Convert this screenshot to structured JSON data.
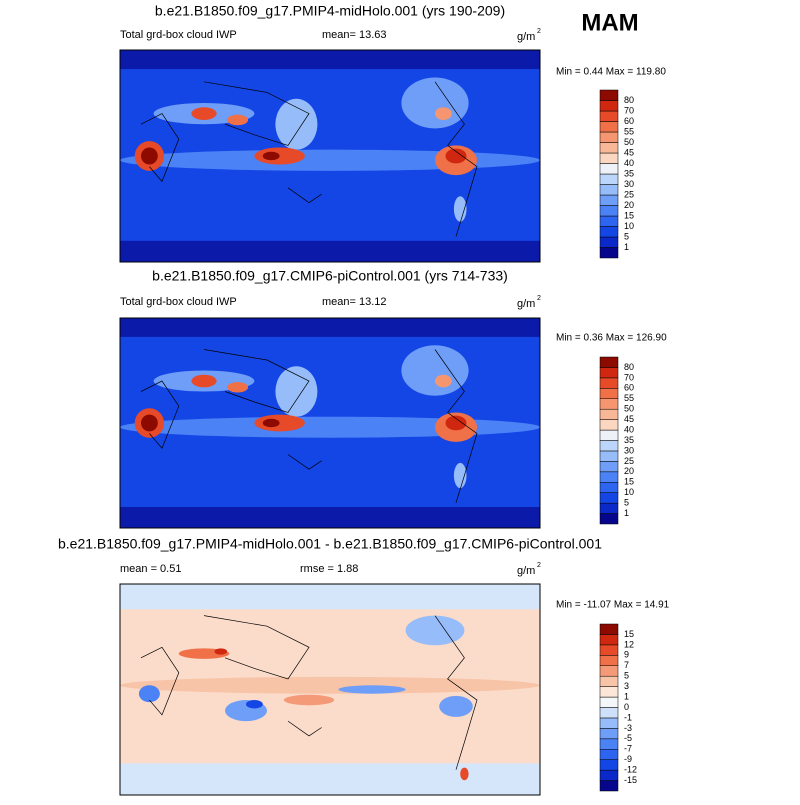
{
  "season": "MAM",
  "panels": [
    {
      "title": "b.e21.B1850.f09_g17.PMIP4-midHolo.001 (yrs 190-209)",
      "label": "Total grd-box cloud IWP",
      "mean": "mean=  13.63",
      "units": "g/m",
      "units_exp": "2",
      "minmax": "Min =  0.44 Max = 119.80",
      "colorbar": {
        "levels": [
          "1",
          "5",
          "10",
          "15",
          "20",
          "25",
          "30",
          "35",
          "40",
          "45",
          "50",
          "55",
          "60",
          "70",
          "80"
        ],
        "colors": [
          "#06068c",
          "#0b28c8",
          "#1446e6",
          "#2d64f0",
          "#4b82f5",
          "#6e9ef7",
          "#96bcf9",
          "#bcd6fb",
          "#eef2f8",
          "#fbd6c0",
          "#f8b898",
          "#f59670",
          "#f07048",
          "#e64a28",
          "#d02810",
          "#8c0a00"
        ]
      }
    },
    {
      "title": "b.e21.B1850.f09_g17.CMIP6-piControl.001 (yrs 714-733)",
      "label": "Total grd-box cloud IWP",
      "mean": "mean=  13.12",
      "units": "g/m",
      "units_exp": "2",
      "minmax": "Min =  0.36 Max = 126.90",
      "colorbar": {
        "levels": [
          "1",
          "5",
          "10",
          "15",
          "20",
          "25",
          "30",
          "35",
          "40",
          "45",
          "50",
          "55",
          "60",
          "70",
          "80"
        ],
        "colors": [
          "#06068c",
          "#0b28c8",
          "#1446e6",
          "#2d64f0",
          "#4b82f5",
          "#6e9ef7",
          "#96bcf9",
          "#bcd6fb",
          "#eef2f8",
          "#fbd6c0",
          "#f8b898",
          "#f59670",
          "#f07048",
          "#e64a28",
          "#d02810",
          "#8c0a00"
        ]
      }
    },
    {
      "title": "b.e21.B1850.f09_g17.PMIP4-midHolo.001 - b.e21.B1850.f09_g17.CMIP6-piControl.001",
      "mean": "mean =   0.51",
      "rmse": "rmse =   1.88",
      "units": "g/m",
      "units_exp": "2",
      "minmax": "Min = -11.07 Max =  14.91",
      "colorbar": {
        "levels": [
          "-15",
          "-12",
          "-9",
          "-7",
          "-5",
          "-3",
          "-1",
          "0",
          "1",
          "3",
          "5",
          "7",
          "9",
          "12",
          "15"
        ],
        "colors": [
          "#06068c",
          "#0b28c8",
          "#1446e6",
          "#2d64f0",
          "#4b82f5",
          "#6e9ef7",
          "#96bcf9",
          "#cfe0fa",
          "#f4f6fa",
          "#fce6d8",
          "#f8c4a8",
          "#f59a78",
          "#f07048",
          "#e64a28",
          "#d02810",
          "#8c0a00"
        ]
      }
    }
  ]
}
